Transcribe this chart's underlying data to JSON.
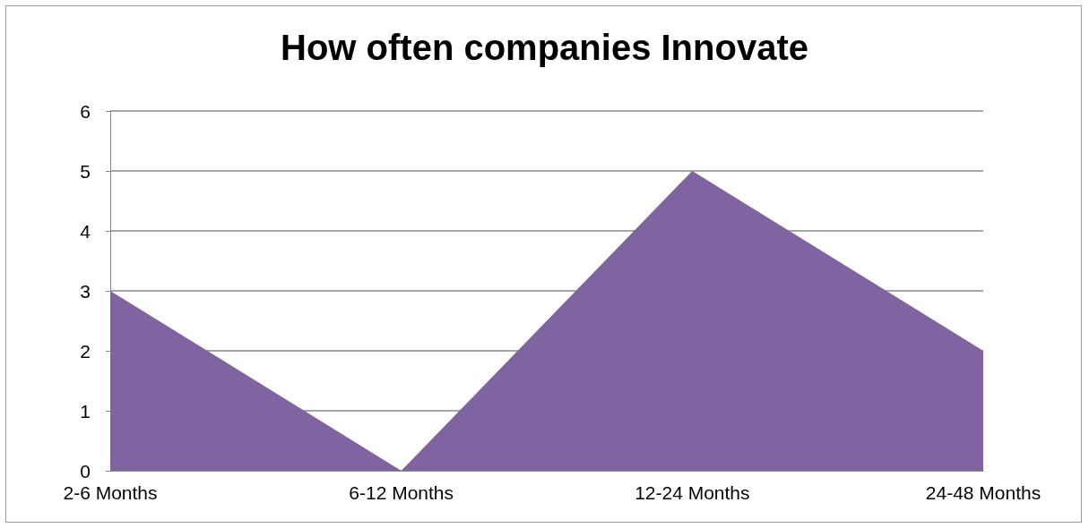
{
  "chart_data": {
    "type": "area",
    "title": "How often companies Innovate",
    "categories": [
      "2-6 Months",
      "6-12 Months",
      "12-24 Months",
      "24-48 Months"
    ],
    "series": [
      {
        "color": "#8064a2",
        "values": [
          3,
          0,
          5,
          2
        ]
      }
    ],
    "ylim": [
      0,
      6
    ],
    "yticks": [
      0,
      1,
      2,
      3,
      4,
      5,
      6
    ],
    "grid": "y"
  }
}
